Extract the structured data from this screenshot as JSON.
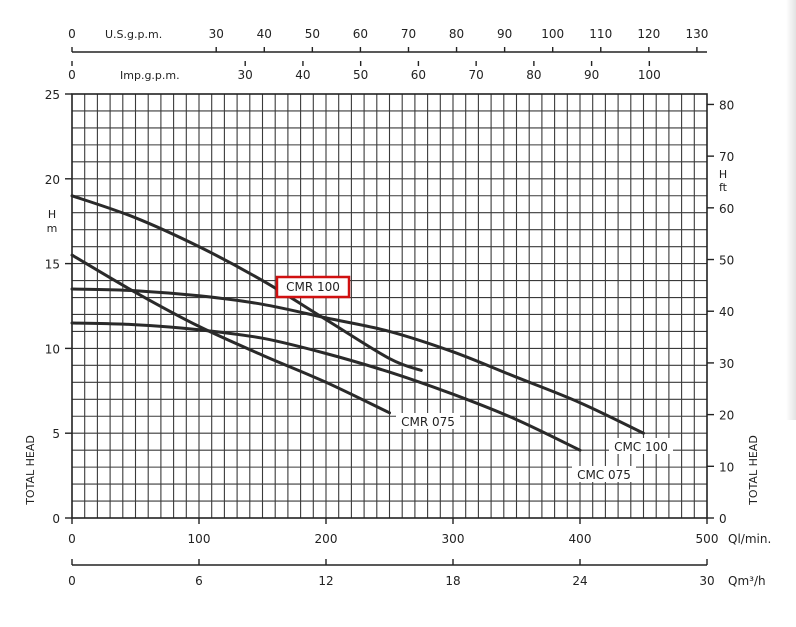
{
  "chart_data": {
    "type": "line",
    "x": {
      "label": "Ql/min.",
      "lim": [
        0,
        500
      ],
      "ticks": [
        0,
        100,
        200,
        300,
        400,
        500
      ]
    },
    "x2": {
      "label": "Qm³/h",
      "lim": [
        0,
        30
      ],
      "ticks": [
        0,
        6,
        12,
        18,
        24,
        30
      ]
    },
    "x_top1": {
      "label": "U.S.g.p.m.",
      "ticks": [
        0,
        30,
        40,
        50,
        60,
        70,
        80,
        90,
        100,
        110,
        120,
        130
      ]
    },
    "x_top2": {
      "label": "Imp.g.p.m.",
      "ticks": [
        0,
        30,
        40,
        50,
        60,
        70,
        80,
        90,
        100
      ]
    },
    "y": {
      "label": "TOTAL HEAD",
      "unit": "H m",
      "lim": [
        0,
        25
      ],
      "ticks": [
        0,
        5,
        10,
        15,
        20,
        25
      ]
    },
    "y2": {
      "label": "TOTAL HEAD",
      "unit": "H ft",
      "ticks": [
        0,
        10,
        20,
        30,
        40,
        50,
        60,
        70,
        80
      ]
    },
    "grid": true,
    "series": [
      {
        "name": "CMR 100",
        "points": [
          [
            0,
            19.0
          ],
          [
            50,
            17.7
          ],
          [
            100,
            16.0
          ],
          [
            150,
            14.0
          ],
          [
            200,
            11.7
          ],
          [
            250,
            9.4
          ],
          [
            275,
            8.7
          ]
        ]
      },
      {
        "name": "CMR 075",
        "points": [
          [
            0,
            15.5
          ],
          [
            50,
            13.3
          ],
          [
            100,
            11.3
          ],
          [
            150,
            9.6
          ],
          [
            200,
            8.0
          ],
          [
            250,
            6.2
          ]
        ]
      },
      {
        "name": "CMC 100",
        "points": [
          [
            0,
            13.5
          ],
          [
            50,
            13.4
          ],
          [
            100,
            13.1
          ],
          [
            150,
            12.6
          ],
          [
            200,
            11.8
          ],
          [
            250,
            11.0
          ],
          [
            300,
            9.8
          ],
          [
            350,
            8.3
          ],
          [
            400,
            6.8
          ],
          [
            450,
            5.0
          ]
        ]
      },
      {
        "name": "CMC 075",
        "points": [
          [
            0,
            11.5
          ],
          [
            50,
            11.4
          ],
          [
            100,
            11.1
          ],
          [
            150,
            10.6
          ],
          [
            200,
            9.7
          ],
          [
            250,
            8.6
          ],
          [
            300,
            7.3
          ],
          [
            350,
            5.8
          ],
          [
            400,
            4.0
          ]
        ]
      }
    ],
    "annotations": [
      {
        "text": "CMR 100",
        "highlight_color": "#d01010"
      },
      {
        "text": "CMR 075"
      },
      {
        "text": "CMC 100"
      },
      {
        "text": "CMC 075"
      }
    ]
  }
}
